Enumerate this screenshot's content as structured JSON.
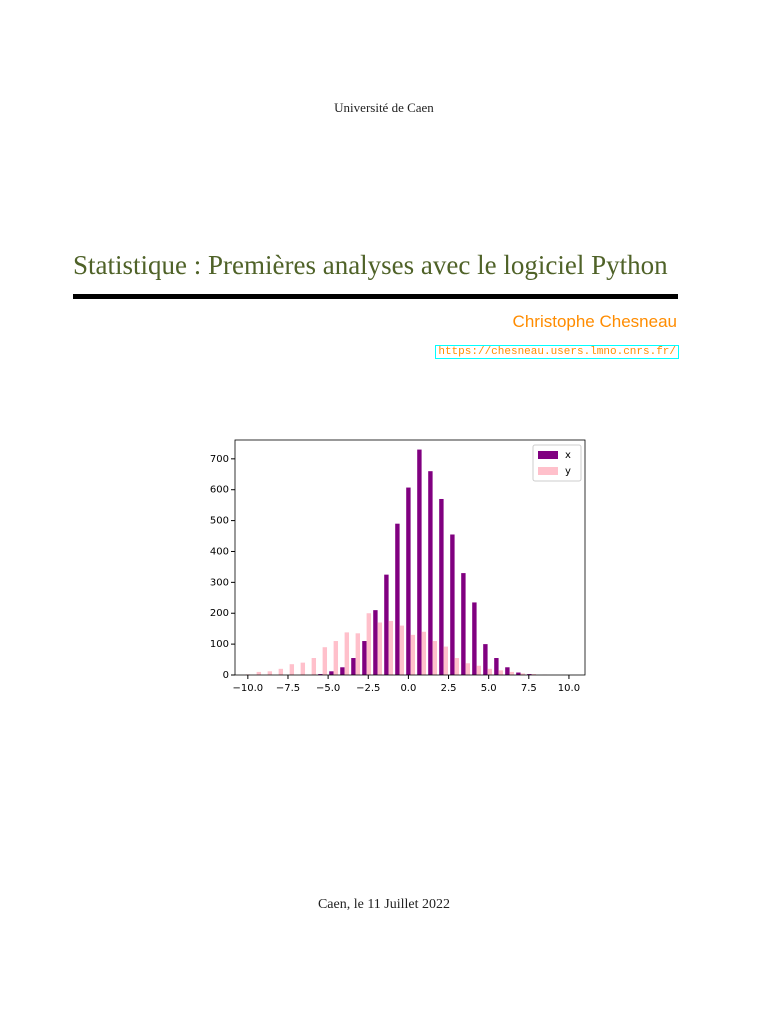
{
  "header": {
    "institution": "Université de Caen",
    "title": "Statistique : Premières analyses avec le logiciel Python",
    "author": "Christophe Chesneau",
    "url": "https://chesneau.users.lmno.cnrs.fr/"
  },
  "chart_data": {
    "type": "histogram",
    "bins": [
      -10.48,
      -9.795,
      -9.11,
      -8.425,
      -7.74,
      -7.055,
      -6.37,
      -5.685,
      -5.0,
      -4.315,
      -3.63,
      -2.945,
      -2.26,
      -1.575,
      -0.89,
      -0.205,
      0.48,
      1.165,
      1.85,
      2.535,
      3.22,
      3.905,
      4.59,
      5.275,
      5.96,
      6.645,
      7.33,
      8.015,
      8.7,
      9.385,
      10.07
    ],
    "series": [
      {
        "name": "x",
        "color": "#800080",
        "values": [
          0,
          0,
          0,
          0,
          0,
          0,
          0,
          3,
          12,
          25,
          55,
          110,
          210,
          325,
          490,
          607,
          730,
          660,
          570,
          455,
          330,
          235,
          100,
          55,
          25,
          8,
          3,
          0,
          0,
          0
        ]
      },
      {
        "name": "y",
        "color": "#ffc0cb",
        "values": [
          2,
          10,
          12,
          20,
          35,
          40,
          55,
          90,
          110,
          138,
          135,
          200,
          170,
          175,
          160,
          130,
          140,
          110,
          92,
          55,
          38,
          30,
          20,
          15,
          10,
          5,
          3,
          1,
          0,
          0
        ]
      }
    ],
    "xlim": [
      -10.8,
      11
    ],
    "ylim": [
      0,
      761
    ],
    "xticks": [
      {
        "value": -10,
        "label": "−10.0"
      },
      {
        "value": -7.5,
        "label": "−7.5"
      },
      {
        "value": -5,
        "label": "−5.0"
      },
      {
        "value": -2.5,
        "label": "−2.5"
      },
      {
        "value": 0,
        "label": "0.0"
      },
      {
        "value": 2.5,
        "label": "2.5"
      },
      {
        "value": 5,
        "label": "5.0"
      },
      {
        "value": 7.5,
        "label": "7.5"
      },
      {
        "value": 10,
        "label": "10.0"
      }
    ],
    "yticks": [
      0,
      100,
      200,
      300,
      400,
      500,
      600,
      700
    ],
    "legend": "upper right"
  },
  "footer": {
    "date": "Caen, le 11 Juillet 2022"
  }
}
